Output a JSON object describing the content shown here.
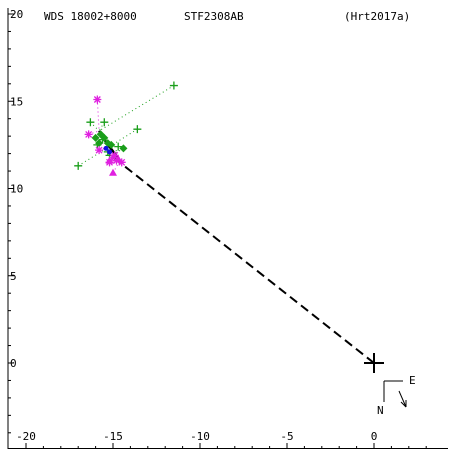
{
  "header": {
    "left_label": "WDS 18002+8000",
    "center_label": "STF2308AB",
    "right_label": "(Hrt2017a)"
  },
  "compass": {
    "east_label": "E",
    "north_label": "N"
  },
  "colors": {
    "axes": "#000000",
    "orbit": "#000000",
    "green_series": "#1a9e1a",
    "magenta_series": "#e020e0",
    "blue_series": "#1010dd"
  },
  "chart_data": {
    "type": "scatter",
    "xlim": [
      -20.5,
      4
    ],
    "ylim": [
      -4,
      20.3
    ],
    "x_ticks": [
      -20,
      -15,
      -10,
      -5,
      0
    ],
    "x_tick_labels": [
      "-20",
      "-15",
      "-10",
      "-5",
      "0"
    ],
    "y_ticks": [
      0,
      5,
      10,
      15,
      20
    ],
    "y_tick_labels": [
      "0",
      "5",
      "10",
      "15",
      "20"
    ],
    "primary": {
      "x": 0,
      "y": 0
    },
    "dashed_line": [
      [
        0,
        0
      ],
      [
        -15.0,
        11.8
      ]
    ],
    "orbit_arc": [
      [
        -15.8,
        13.3
      ],
      [
        -15.5,
        12.8
      ],
      [
        -15.2,
        12.4
      ],
      [
        -14.9,
        12.0
      ],
      [
        -14.6,
        11.6
      ]
    ],
    "series": [
      {
        "marker": "plus",
        "points": [
          [
            -11.5,
            15.9
          ],
          [
            -13.6,
            13.4
          ],
          [
            -15.5,
            13.8
          ],
          [
            -16.3,
            13.8
          ],
          [
            -17.0,
            11.3
          ],
          [
            -15.2,
            11.9
          ],
          [
            -15.6,
            12.8
          ],
          [
            -15.9,
            12.5
          ],
          [
            -14.7,
            12.4
          ],
          [
            -15.3,
            12.1
          ],
          [
            -14.9,
            11.8
          ]
        ]
      },
      {
        "marker": "diamond",
        "points": [
          [
            -15.7,
            13.1
          ],
          [
            -15.5,
            12.9
          ],
          [
            -15.3,
            12.6
          ],
          [
            -14.4,
            12.3
          ],
          [
            -15.8,
            12.6
          ],
          [
            -15.1,
            12.5
          ],
          [
            -16.0,
            12.9
          ]
        ]
      },
      {
        "marker": "asterisk",
        "points": [
          [
            -15.9,
            15.1
          ],
          [
            -16.4,
            13.1
          ],
          [
            -15.8,
            12.2
          ],
          [
            -15.0,
            11.8
          ],
          [
            -14.8,
            11.6
          ],
          [
            -14.5,
            11.5
          ],
          [
            -15.2,
            11.5
          ],
          [
            -14.9,
            11.9
          ]
        ]
      },
      {
        "marker": "triangle",
        "points": [
          [
            -15.0,
            10.9
          ],
          [
            -15.2,
            11.6
          ],
          [
            -14.7,
            11.7
          ]
        ]
      },
      {
        "marker": "filled-point",
        "points": [
          [
            -15.4,
            12.3
          ],
          [
            -15.2,
            12.1
          ]
        ]
      }
    ]
  }
}
